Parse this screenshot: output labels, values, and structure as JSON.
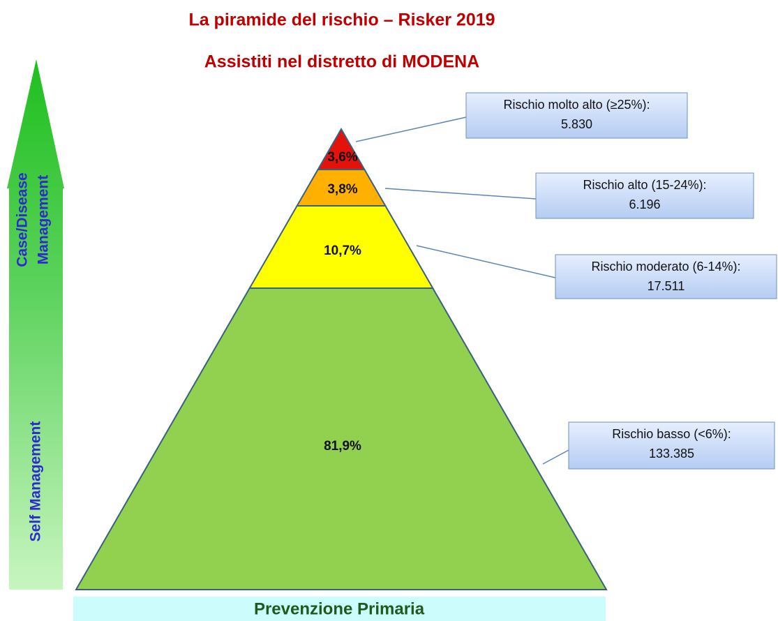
{
  "title": "La piramide del rischio – Risker 2019",
  "subtitle": "Assistiti nel distretto di MODENA",
  "side_labels": {
    "upper": [
      "Case/Disease",
      "Management"
    ],
    "lower": "Self Management"
  },
  "base_label": "Prevenzione Primaria",
  "levels": [
    {
      "percent": "3,6%",
      "label": "Rischio molto alto (≥25%):",
      "count": "5.830",
      "color": "#e3120b"
    },
    {
      "percent": "3,8%",
      "label": "Rischio alto (15-24%):",
      "count": "6.196",
      "color": "#ffb000"
    },
    {
      "percent": "10,7%",
      "label": "Rischio moderato (6-14%):",
      "count": "17.511",
      "color": "#ffff00"
    },
    {
      "percent": "81,9%",
      "label": "Rischio basso (<6%):",
      "count": "133.385",
      "color": "#92d050"
    }
  ]
}
